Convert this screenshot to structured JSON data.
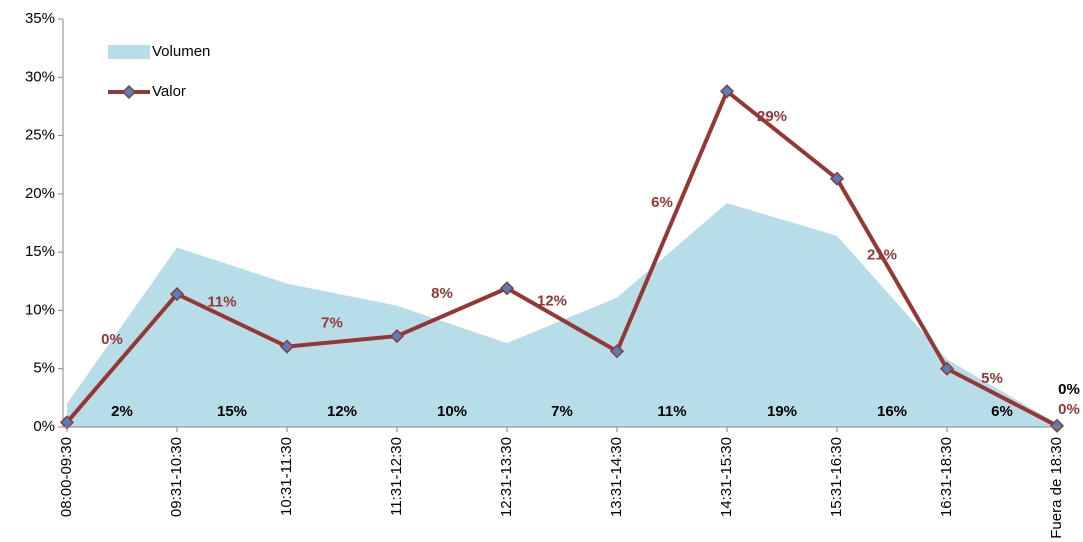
{
  "chart_data": {
    "type": "line",
    "categories": [
      "08:00-09:30",
      "09:31-10:30",
      "10:31-11:30",
      "11:31-12:30",
      "12:31-13:30",
      "13:31-14:30",
      "14:31-15:30",
      "15:31-16:30",
      "16:31-18:30",
      "Fuera de 18:30"
    ],
    "series": [
      {
        "name": "Volumen",
        "type": "area",
        "color": "#b7dde8",
        "values": [
          2,
          15.4,
          12.3,
          10.4,
          7.2,
          11.1,
          19.2,
          16.4,
          5.8,
          0.3
        ],
        "value_labels": [
          "2%",
          "15%",
          "12%",
          "10%",
          "7%",
          "11%",
          "19%",
          "16%",
          "6%",
          "0%"
        ]
      },
      {
        "name": "Valor",
        "type": "line",
        "color": "#953735",
        "values": [
          0.4,
          11.4,
          6.9,
          7.8,
          11.9,
          6.5,
          28.8,
          21.3,
          5.0,
          0.1
        ],
        "value_labels": [
          "0%",
          "11%",
          "7%",
          "8%",
          "12%",
          "6%",
          "29%",
          "21%",
          "5%",
          "0%"
        ]
      }
    ],
    "ylim": [
      0,
      35
    ],
    "yticks": [
      {
        "value": 0,
        "label": "0%"
      },
      {
        "value": 5,
        "label": "5%"
      },
      {
        "value": 10,
        "label": "10%"
      },
      {
        "value": 15,
        "label": "15%"
      },
      {
        "value": 20,
        "label": "20%"
      },
      {
        "value": 25,
        "label": "25%"
      },
      {
        "value": 30,
        "label": "30%"
      },
      {
        "value": 35,
        "label": "35%"
      }
    ],
    "legend": "upper left"
  }
}
